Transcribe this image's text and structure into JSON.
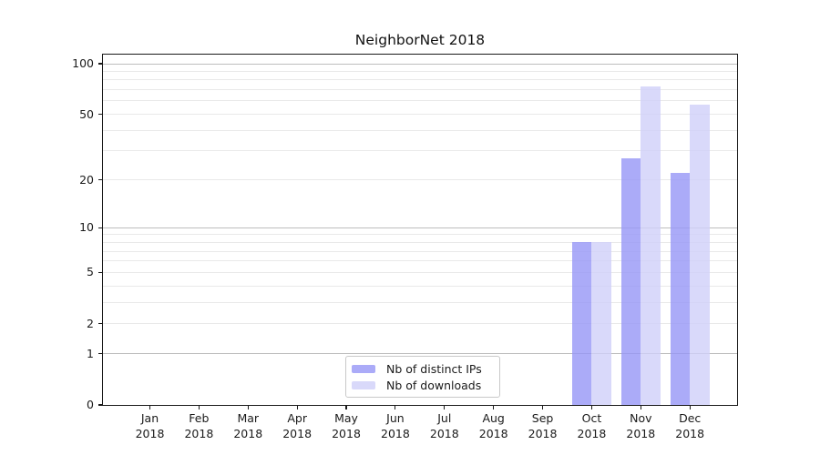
{
  "chart_data": {
    "type": "bar",
    "title": "NeighborNet 2018",
    "categories": [
      "Jan 2018",
      "Feb 2018",
      "Mar 2018",
      "Apr 2018",
      "May 2018",
      "Jun 2018",
      "Jul 2018",
      "Aug 2018",
      "Sep 2018",
      "Oct 2018",
      "Nov 2018",
      "Dec 2018"
    ],
    "series": [
      {
        "name": "Nb of distinct IPs",
        "color": "rgba(150,150,246,0.8)",
        "values": [
          0,
          0,
          0,
          0,
          0,
          0,
          0,
          0,
          0,
          8,
          27,
          22
        ]
      },
      {
        "name": "Nb of downloads",
        "color": "rgba(208,208,249,0.8)",
        "values": [
          0,
          0,
          0,
          0,
          0,
          0,
          0,
          0,
          0,
          8,
          73,
          57
        ]
      }
    ],
    "yscale": "symlog-log1p",
    "ylim": [
      0,
      115
    ],
    "yticks": [
      0,
      1,
      2,
      5,
      10,
      20,
      50,
      100
    ],
    "grid": "on",
    "legend_position": "lower center"
  }
}
